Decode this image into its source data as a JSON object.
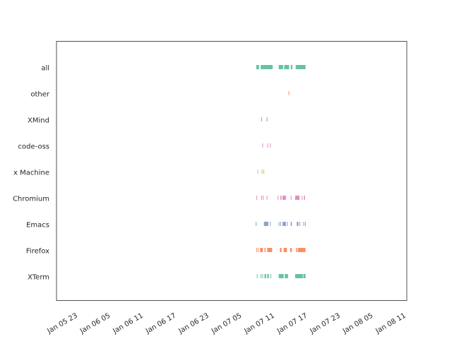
{
  "chart_data": {
    "type": "timeline",
    "title": "",
    "xlabel": "",
    "ylabel": "",
    "grid": false,
    "x_unit": "hours since Jan 05 23:00",
    "xlim": [
      -3.5,
      60.5
    ],
    "x_ticks": [
      {
        "value": 0,
        "label": "Jan 05 23"
      },
      {
        "value": 6,
        "label": "Jan 06 05"
      },
      {
        "value": 12,
        "label": "Jan 06 11"
      },
      {
        "value": 18,
        "label": "Jan 06 17"
      },
      {
        "value": 24,
        "label": "Jan 06 23"
      },
      {
        "value": 30,
        "label": "Jan 07 05"
      },
      {
        "value": 36,
        "label": "Jan 07 11"
      },
      {
        "value": 42,
        "label": "Jan 07 17"
      },
      {
        "value": 48,
        "label": "Jan 07 23"
      },
      {
        "value": 54,
        "label": "Jan 08 05"
      },
      {
        "value": 60,
        "label": "Jan 08 11"
      }
    ],
    "categories": [
      "all",
      "other",
      "XMind",
      "code-oss",
      "Time Machine",
      "Chromium",
      "Emacs",
      "Firefox",
      "XTerm"
    ],
    "category_labels_visible": [
      "all",
      "other",
      "XMind",
      "code-oss",
      "x Machine",
      "Chromium",
      "Emacs",
      "Firefox",
      "XTerm"
    ],
    "series": [
      {
        "name": "all",
        "color": "#66c2a5",
        "intervals": [
          [
            33.0,
            33.5
          ],
          [
            33.8,
            36.0
          ],
          [
            37.1,
            37.9
          ],
          [
            38.1,
            39.0
          ],
          [
            39.3,
            39.6
          ],
          [
            40.2,
            42.0
          ]
        ]
      },
      {
        "name": "other",
        "color": "#fc8d62",
        "intervals": [
          [
            38.9,
            39.0
          ]
        ]
      },
      {
        "name": "XMind",
        "color": "#8da0cb",
        "intervals": [
          [
            33.9,
            34.0
          ],
          [
            34.9,
            35.0
          ]
        ]
      },
      {
        "name": "code-oss",
        "color": "#e78ac3",
        "intervals": [
          [
            34.1,
            34.2
          ],
          [
            35.0,
            35.1
          ],
          [
            35.5,
            35.6
          ]
        ]
      },
      {
        "name": "Time Machine",
        "color": "#a6d854",
        "intervals": [
          [
            33.2,
            33.3
          ],
          [
            34.0,
            34.1
          ],
          [
            34.3,
            34.4
          ]
        ]
      },
      {
        "name": "Chromium",
        "color": "#e78ac3",
        "intervals": [
          [
            33.0,
            33.1
          ],
          [
            33.9,
            34.0
          ],
          [
            34.2,
            34.3
          ],
          [
            34.9,
            35.0
          ],
          [
            36.9,
            37.0
          ],
          [
            37.4,
            37.6
          ],
          [
            37.8,
            38.4
          ],
          [
            39.3,
            39.4
          ],
          [
            40.1,
            40.9
          ],
          [
            41.3,
            41.4
          ],
          [
            41.7,
            41.9
          ]
        ]
      },
      {
        "name": "Emacs",
        "color": "#8da0cb",
        "intervals": [
          [
            32.9,
            33.0
          ],
          [
            34.4,
            35.2
          ],
          [
            35.5,
            35.6
          ],
          [
            37.1,
            37.2
          ],
          [
            37.4,
            37.5
          ],
          [
            37.8,
            38.4
          ],
          [
            38.6,
            38.7
          ],
          [
            39.3,
            39.5
          ],
          [
            40.4,
            40.7
          ],
          [
            40.9,
            41.0
          ],
          [
            41.6,
            41.7
          ],
          [
            41.9,
            42.0
          ]
        ]
      },
      {
        "name": "Firefox",
        "color": "#fc8d62",
        "intervals": [
          [
            33.0,
            33.1
          ],
          [
            33.3,
            33.4
          ],
          [
            33.7,
            34.2
          ],
          [
            34.5,
            34.7
          ],
          [
            35.0,
            35.9
          ],
          [
            37.3,
            37.6
          ],
          [
            38.0,
            38.6
          ],
          [
            39.2,
            39.5
          ],
          [
            40.3,
            40.5
          ],
          [
            40.6,
            42.0
          ]
        ]
      },
      {
        "name": "XTerm",
        "color": "#66c2a5",
        "intervals": [
          [
            33.1,
            33.2
          ],
          [
            33.8,
            33.9
          ],
          [
            34.1,
            34.2
          ],
          [
            34.5,
            34.8
          ],
          [
            35.0,
            35.3
          ],
          [
            35.6,
            35.7
          ],
          [
            37.1,
            38.0
          ],
          [
            38.2,
            38.8
          ],
          [
            40.1,
            41.5
          ],
          [
            41.6,
            42.0
          ]
        ]
      }
    ]
  }
}
